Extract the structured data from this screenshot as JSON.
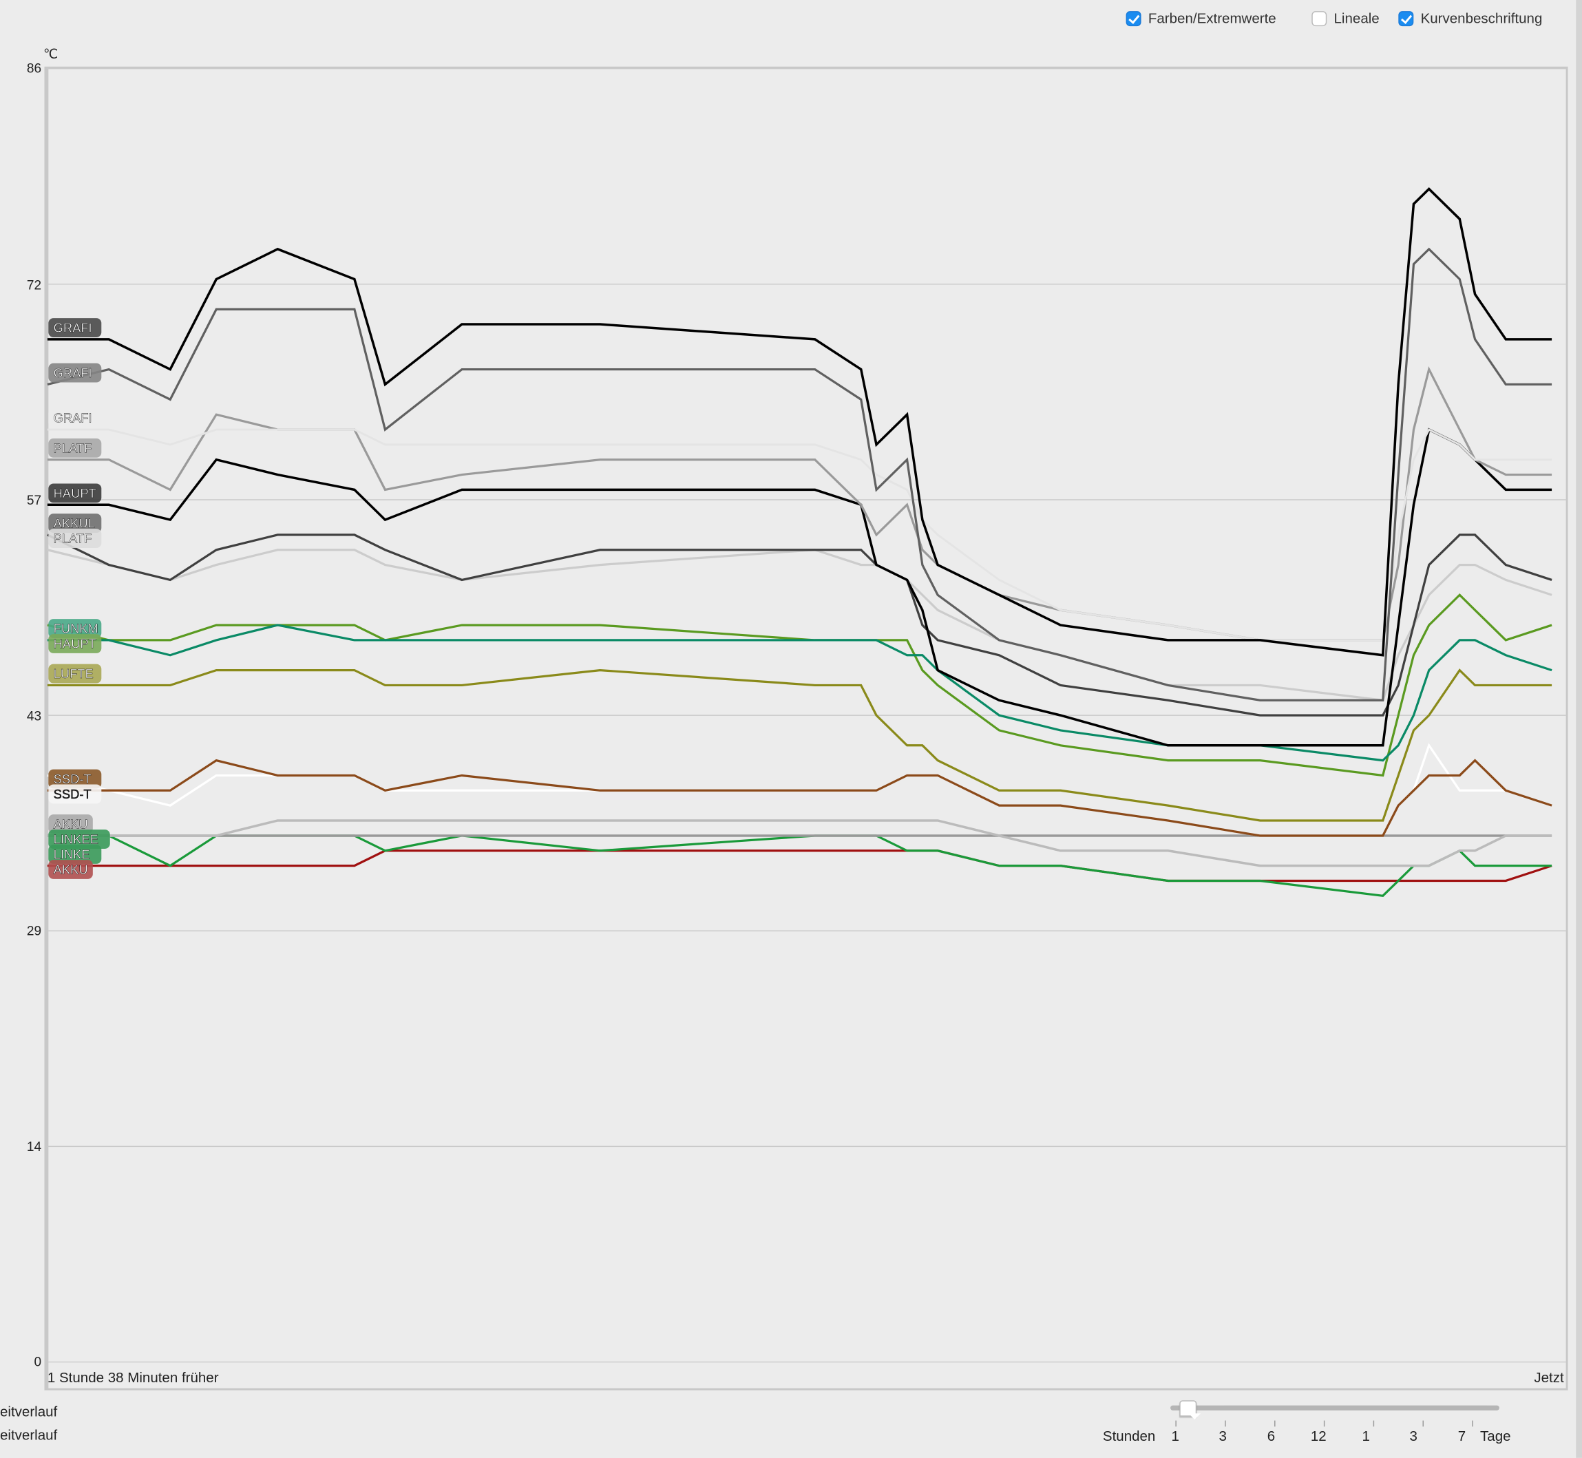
{
  "options": {
    "colors_extremes": {
      "label": "Farben/Extremwerte",
      "checked": true
    },
    "rulers": {
      "label": "Lineale",
      "checked": false
    },
    "curve_labels": {
      "label": "Kurvenbeschriftung",
      "checked": true
    }
  },
  "axis": {
    "unit": "℃",
    "y_ticks": [
      "86",
      "72",
      "57",
      "43",
      "29",
      "14",
      "0"
    ],
    "start_label": "1 Stunde 38 Minuten  früher",
    "end_label": "Jetzt"
  },
  "sidebar_fragments": [
    "eitverlauf",
    "eitverlauf"
  ],
  "timescale": {
    "left_label": "Stunden",
    "right_label": "Tage",
    "ticks": [
      "1",
      "3",
      "6",
      "12",
      "1",
      "3",
      "7"
    ],
    "position": 0.05
  },
  "chart_data": {
    "type": "line",
    "xlabel": "",
    "ylabel": "℃",
    "ylim": [
      0,
      86
    ],
    "grid": true,
    "x_unit": "minutes relative to now",
    "x": [
      -98,
      -94,
      -90,
      -87,
      -83,
      -78,
      -76,
      -71,
      -62,
      -48,
      -45,
      -44,
      -42,
      -41,
      -40,
      -36,
      -32,
      -25,
      -19,
      -11,
      -10,
      -9,
      -8,
      -6,
      -5,
      -3,
      0
    ],
    "series": [
      {
        "name": "GRAFI",
        "color": "#000000",
        "label_bg": "#4a4a4a",
        "label_fg": "#ffffff",
        "width": 2.4,
        "values": [
          68,
          68,
          66,
          72,
          74,
          72,
          65,
          69,
          69,
          68,
          66,
          61,
          63,
          56,
          53,
          51,
          49,
          48,
          48,
          47,
          65,
          77,
          78,
          76,
          71,
          68,
          68
        ]
      },
      {
        "name": "GRAFI",
        "color": "#606060",
        "label_bg": "#858585",
        "label_fg": "#ffffff",
        "width": 2.2,
        "values": [
          65,
          66,
          64,
          70,
          70,
          70,
          62,
          66,
          66,
          66,
          64,
          58,
          60,
          53,
          51,
          48,
          47,
          45,
          44,
          44,
          59,
          73,
          74,
          72,
          68,
          65,
          65
        ]
      },
      {
        "name": "GRAFI",
        "color": "#e4e4e4",
        "label_bg": "#ececec",
        "label_fg": "#ffffff",
        "width": 2,
        "values": [
          62,
          62,
          61,
          62,
          62,
          62,
          61,
          61,
          61,
          61,
          60,
          59,
          58,
          56,
          55,
          52,
          50,
          49,
          48,
          48,
          55,
          60,
          62,
          61,
          60,
          60,
          60
        ]
      },
      {
        "name": "PLATF",
        "color": "#9a9a9a",
        "label_bg": "#a8a8a8",
        "label_fg": "#ffffff",
        "width": 2.2,
        "values": [
          60,
          60,
          58,
          63,
          62,
          62,
          58,
          59,
          60,
          60,
          57,
          55,
          57,
          54,
          53,
          51,
          50,
          49,
          48,
          48,
          53,
          62,
          66,
          62,
          60,
          59,
          59
        ]
      },
      {
        "name": "HAUPT",
        "color": "#000000",
        "label_bg": "#3c3c3c",
        "label_fg": "#ffffff",
        "width": 2.4,
        "values": [
          57,
          57,
          56,
          60,
          59,
          58,
          56,
          58,
          58,
          58,
          57,
          53,
          52,
          50,
          46,
          44,
          43,
          41,
          41,
          41,
          49,
          57,
          62,
          61,
          60,
          58,
          58
        ]
      },
      {
        "name": "AKKUL",
        "color": "#404040",
        "label_bg": "#707070",
        "label_fg": "#ffffff",
        "width": 2.2,
        "values": [
          55,
          53,
          52,
          54,
          55,
          55,
          54,
          52,
          54,
          54,
          54,
          53,
          52,
          49,
          48,
          47,
          45,
          44,
          43,
          43,
          45,
          49,
          53,
          55,
          55,
          53,
          52
        ]
      },
      {
        "name": "PLATF",
        "color": "#cccccc",
        "label_bg": "#dddddd",
        "label_fg": "#ffffff",
        "width": 2.2,
        "values": [
          54,
          53,
          52,
          53,
          54,
          54,
          53,
          52,
          53,
          54,
          53,
          53,
          52,
          51,
          50,
          48,
          47,
          45,
          45,
          44,
          47,
          49,
          51,
          53,
          53,
          52,
          51
        ]
      },
      {
        "name": "FUNKM",
        "color": "#0a8a66",
        "label_bg": "#4aaa88",
        "label_fg": "#ffffff",
        "width": 2.2,
        "values": [
          48,
          48,
          47,
          48,
          49,
          48,
          48,
          48,
          48,
          48,
          48,
          48,
          47,
          47,
          46,
          43,
          42,
          41,
          41,
          40,
          41,
          43,
          46,
          48,
          48,
          47,
          46
        ]
      },
      {
        "name": "HAUPT",
        "color": "#5a9a20",
        "label_bg": "#7aaa5a",
        "label_fg": "#ffffff",
        "width": 2.2,
        "values": [
          49,
          48,
          48,
          49,
          49,
          49,
          48,
          49,
          49,
          48,
          48,
          48,
          48,
          46,
          45,
          42,
          41,
          40,
          40,
          39,
          43,
          47,
          49,
          51,
          50,
          48,
          49
        ]
      },
      {
        "name": "LUFTE",
        "color": "#8a8a1a",
        "label_bg": "#aaa855",
        "label_fg": "#ffffff",
        "width": 2.2,
        "values": [
          45,
          45,
          45,
          46,
          46,
          46,
          45,
          45,
          46,
          45,
          45,
          43,
          41,
          41,
          40,
          38,
          38,
          37,
          36,
          36,
          39,
          42,
          43,
          46,
          45,
          45,
          45
        ]
      },
      {
        "name": "SSD-T",
        "color": "#8b4a1a",
        "label_bg": "#8b5a2a",
        "label_fg": "#ffffff",
        "width": 2.2,
        "values": [
          38,
          38,
          38,
          40,
          39,
          39,
          38,
          39,
          38,
          38,
          38,
          38,
          39,
          39,
          39,
          37,
          37,
          36,
          35,
          35,
          37,
          38,
          39,
          39,
          40,
          38,
          37
        ]
      },
      {
        "name": "SSD-T",
        "color": "#ffffff",
        "label_bg": "#f6f6f6",
        "label_fg": "#222222",
        "width": 2.2,
        "values": [
          39,
          38,
          37,
          39,
          39,
          39,
          38,
          38,
          38,
          38,
          38,
          38,
          39,
          39,
          39,
          37,
          37,
          36,
          35,
          35,
          37,
          38,
          41,
          38,
          38,
          38,
          37
        ]
      },
      {
        "name": "AKKU",
        "color": "#bbbbbb",
        "label_bg": "#aaaaaa",
        "label_fg": "#ffffff",
        "width": 2.4,
        "values": [
          35,
          35,
          35,
          35,
          36,
          36,
          36,
          36,
          36,
          36,
          36,
          36,
          36,
          36,
          36,
          35,
          34,
          34,
          33,
          33,
          33,
          33,
          33,
          34,
          34,
          35,
          35
        ]
      },
      {
        "name": "LINKEE",
        "color": "#999999",
        "label_bg": "#3a9a5a",
        "label_fg": "#ffffff",
        "width": 2.4,
        "values": [
          35,
          35,
          35,
          35,
          35,
          35,
          35,
          35,
          35,
          35,
          35,
          35,
          35,
          35,
          35,
          35,
          35,
          35,
          35,
          35,
          35,
          35,
          35,
          35,
          35,
          35,
          35
        ]
      },
      {
        "name": "LINKE",
        "color": "#1a9a3a",
        "label_bg": "#3a9a5a",
        "label_fg": "#ffffff",
        "width": 2.2,
        "values": [
          35,
          35,
          33,
          35,
          35,
          35,
          34,
          35,
          34,
          35,
          35,
          35,
          34,
          34,
          34,
          33,
          33,
          32,
          32,
          31,
          32,
          33,
          33,
          34,
          33,
          33,
          33
        ]
      },
      {
        "name": "AKKU",
        "color": "#a01010",
        "label_bg": "#b05050",
        "label_fg": "#ffffff",
        "width": 2.2,
        "values": [
          33,
          33,
          33,
          33,
          33,
          33,
          34,
          34,
          34,
          34,
          34,
          34,
          34,
          34,
          34,
          33,
          33,
          32,
          32,
          32,
          32,
          32,
          32,
          32,
          32,
          32,
          33
        ]
      }
    ]
  }
}
